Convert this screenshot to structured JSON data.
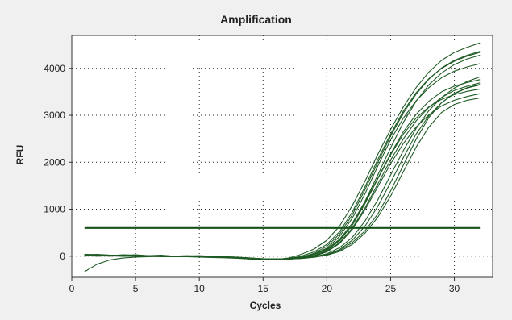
{
  "chart_data": {
    "type": "line",
    "title": "Amplification",
    "xlabel": "Cycles",
    "ylabel": "RFU",
    "xlim": [
      0,
      33
    ],
    "ylim": [
      -450,
      4700
    ],
    "xticks": [
      0,
      5,
      10,
      15,
      20,
      25,
      30
    ],
    "yticks": [
      0,
      1000,
      2000,
      3000,
      4000
    ],
    "grid": true,
    "threshold": {
      "y": 600,
      "x_start": 1,
      "x_end": 32
    },
    "x": [
      1,
      2,
      3,
      4,
      5,
      6,
      7,
      8,
      9,
      10,
      11,
      12,
      13,
      14,
      15,
      16,
      17,
      18,
      19,
      20,
      21,
      22,
      23,
      24,
      25,
      26,
      27,
      28,
      29,
      30,
      31,
      32
    ],
    "series": [
      {
        "values": [
          -330,
          -170,
          -80,
          -40,
          -20,
          -10,
          -5,
          0,
          5,
          5,
          0,
          -10,
          -20,
          -40,
          -60,
          -70,
          -40,
          40,
          150,
          340,
          640,
          1080,
          1600,
          2170,
          2700,
          3180,
          3590,
          3920,
          4170,
          4340,
          4450,
          4540
        ]
      },
      {
        "values": [
          30,
          25,
          20,
          15,
          10,
          5,
          0,
          0,
          -5,
          -5,
          -10,
          -20,
          -30,
          -50,
          -70,
          -70,
          -50,
          0,
          90,
          250,
          520,
          940,
          1480,
          2060,
          2600,
          3090,
          3480,
          3780,
          4000,
          4150,
          4260,
          4340
        ]
      },
      {
        "values": [
          20,
          10,
          20,
          0,
          -5,
          0,
          -10,
          -10,
          -10,
          -10,
          -20,
          -30,
          -40,
          -60,
          -70,
          -80,
          -60,
          -20,
          60,
          210,
          470,
          880,
          1420,
          2000,
          2560,
          3050,
          3450,
          3770,
          4010,
          4170,
          4280,
          4360
        ]
      },
      {
        "values": [
          40,
          20,
          10,
          30,
          20,
          10,
          5,
          0,
          -5,
          0,
          -20,
          -25,
          -40,
          -55,
          -70,
          -75,
          -65,
          -30,
          40,
          170,
          420,
          810,
          1330,
          1920,
          2480,
          2940,
          3310,
          3590,
          3800,
          3940,
          4030,
          4100
        ]
      },
      {
        "values": [
          10,
          0,
          10,
          10,
          0,
          5,
          -5,
          -10,
          -5,
          -10,
          -15,
          -25,
          -35,
          -55,
          -65,
          -70,
          -60,
          -30,
          30,
          140,
          350,
          700,
          1170,
          1730,
          2310,
          2850,
          3300,
          3650,
          3900,
          4080,
          4200,
          4280
        ]
      },
      {
        "values": [
          0,
          20,
          10,
          10,
          30,
          10,
          20,
          0,
          0,
          -5,
          -10,
          -20,
          -35,
          -50,
          -60,
          -70,
          -55,
          -20,
          40,
          150,
          360,
          700,
          1150,
          1660,
          2180,
          2650,
          3020,
          3300,
          3500,
          3620,
          3700,
          3760
        ]
      },
      {
        "values": [
          20,
          10,
          0,
          10,
          5,
          0,
          0,
          -10,
          -10,
          -20,
          -30,
          -35,
          -45,
          -60,
          -65,
          -70,
          -65,
          -40,
          0,
          100,
          290,
          600,
          1030,
          1540,
          2050,
          2500,
          2880,
          3170,
          3380,
          3530,
          3620,
          3690
        ]
      },
      {
        "values": [
          10,
          20,
          10,
          0,
          0,
          10,
          10,
          0,
          10,
          0,
          -10,
          -20,
          -30,
          -45,
          -60,
          -65,
          -60,
          -40,
          0,
          90,
          270,
          570,
          990,
          1480,
          1970,
          2400,
          2750,
          3010,
          3200,
          3320,
          3400,
          3460
        ]
      },
      {
        "values": [
          30,
          40,
          20,
          10,
          10,
          0,
          0,
          0,
          -5,
          -10,
          -15,
          -25,
          -30,
          -45,
          -55,
          -60,
          -55,
          -35,
          10,
          120,
          330,
          660,
          1120,
          1650,
          2160,
          2600,
          2940,
          3180,
          3340,
          3440,
          3510,
          3560
        ]
      },
      {
        "values": [
          20,
          10,
          20,
          10,
          0,
          10,
          0,
          0,
          5,
          10,
          0,
          -10,
          -25,
          -40,
          -55,
          -60,
          -55,
          -40,
          -10,
          50,
          180,
          400,
          750,
          1200,
          1730,
          2250,
          2720,
          3100,
          3380,
          3580,
          3720,
          3820
        ]
      },
      {
        "values": [
          40,
          30,
          20,
          10,
          0,
          0,
          5,
          5,
          0,
          0,
          -10,
          -20,
          -30,
          -45,
          -55,
          -60,
          -55,
          -45,
          -20,
          30,
          140,
          340,
          640,
          1060,
          1570,
          2100,
          2600,
          2990,
          3270,
          3460,
          3580,
          3650
        ]
      },
      {
        "values": [
          30,
          20,
          10,
          10,
          5,
          0,
          0,
          -5,
          -5,
          -10,
          -10,
          -20,
          -35,
          -50,
          -60,
          -65,
          -60,
          -45,
          -15,
          30,
          120,
          290,
          540,
          900,
          1390,
          1940,
          2490,
          2950,
          3270,
          3470,
          3590,
          3660
        ]
      },
      {
        "values": [
          20,
          20,
          10,
          0,
          5,
          0,
          0,
          -5,
          0,
          -5,
          -15,
          -20,
          -30,
          -40,
          -55,
          -60,
          -60,
          -50,
          -25,
          20,
          100,
          250,
          490,
          830,
          1280,
          1800,
          2320,
          2750,
          3060,
          3230,
          3320,
          3370
        ]
      }
    ]
  }
}
